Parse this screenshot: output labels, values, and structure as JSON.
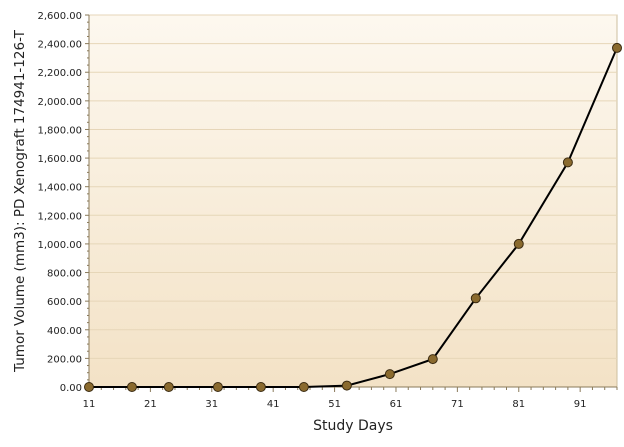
{
  "chart_data": {
    "type": "line",
    "title": "",
    "xlabel": "Study Days",
    "ylabel": "Tumor Volume (mm3): PD Xenograft 174941-126-T",
    "xlim": [
      11,
      97
    ],
    "ylim": [
      0,
      2600
    ],
    "x_ticks": [
      11,
      21,
      31,
      41,
      51,
      61,
      71,
      81,
      91
    ],
    "y_ticks": [
      0,
      200,
      400,
      600,
      800,
      1000,
      1200,
      1400,
      1600,
      1800,
      2000,
      2200,
      2400,
      2600
    ],
    "y_tick_labels": [
      "0.00",
      "200.00",
      "400.00",
      "600.00",
      "800.00",
      "1,000.00",
      "1,200.00",
      "1,400.00",
      "1,600.00",
      "1,800.00",
      "2,000.00",
      "2,200.00",
      "2,400.00",
      "2,600.00"
    ],
    "grid": true,
    "series": [
      {
        "x": [
          11,
          18,
          24,
          32,
          39,
          46,
          53,
          60,
          67,
          74,
          81,
          89,
          97
        ],
        "y": [
          0,
          0,
          0,
          0,
          0,
          0,
          10,
          90,
          195,
          620,
          1000,
          1570,
          2370
        ]
      }
    ],
    "colors": {
      "line": "#000000",
      "marker_fill": "#8a6a2e",
      "marker_stroke": "#3a2a10",
      "plot_bg_top": "#fdf8ef",
      "plot_bg_bottom": "#f3e2c6",
      "grid": "#e6d6b8",
      "axis": "#8a7a5a"
    }
  }
}
